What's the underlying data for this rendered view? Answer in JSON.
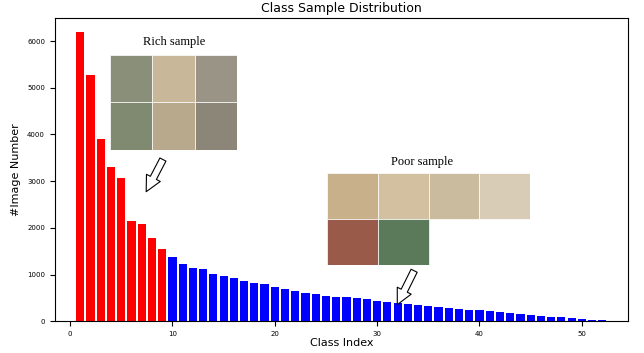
{
  "chart_data": {
    "type": "bar",
    "title": "Class Sample Distribution",
    "x_label": "Class Index",
    "y_label": "#Image Number",
    "x": [
      1,
      2,
      3,
      4,
      5,
      6,
      7,
      8,
      9,
      10,
      11,
      12,
      13,
      14,
      15,
      16,
      17,
      18,
      19,
      20,
      21,
      22,
      23,
      24,
      25,
      26,
      27,
      28,
      29,
      30,
      31,
      32,
      33,
      34,
      35,
      36,
      37,
      38,
      39,
      40,
      41,
      42,
      43,
      44,
      45,
      46,
      47,
      48,
      49,
      50,
      51,
      52
    ],
    "values": [
      6200,
      5280,
      3900,
      3300,
      3070,
      2140,
      2090,
      1790,
      1540,
      1380,
      1220,
      1130,
      1120,
      1010,
      960,
      920,
      860,
      810,
      790,
      730,
      680,
      650,
      610,
      580,
      550,
      520,
      510,
      490,
      470,
      440,
      420,
      400,
      370,
      340,
      320,
      300,
      290,
      270,
      250,
      240,
      220,
      200,
      180,
      160,
      140,
      120,
      100,
      80,
      60,
      50,
      30,
      20
    ],
    "colors": [
      "#ff0000",
      "#ff0000",
      "#ff0000",
      "#ff0000",
      "#ff0000",
      "#ff0000",
      "#ff0000",
      "#ff0000",
      "#ff0000",
      "#0000ff",
      "#0000ff",
      "#0000ff",
      "#0000ff",
      "#0000ff",
      "#0000ff",
      "#0000ff",
      "#0000ff",
      "#0000ff",
      "#0000ff",
      "#0000ff",
      "#0000ff",
      "#0000ff",
      "#0000ff",
      "#0000ff",
      "#0000ff",
      "#0000ff",
      "#0000ff",
      "#0000ff",
      "#0000ff",
      "#0000ff",
      "#0000ff",
      "#0000ff",
      "#0000ff",
      "#0000ff",
      "#0000ff",
      "#0000ff",
      "#0000ff",
      "#0000ff",
      "#0000ff",
      "#0000ff",
      "#0000ff",
      "#0000ff",
      "#0000ff",
      "#0000ff",
      "#0000ff",
      "#0000ff",
      "#0000ff",
      "#0000ff",
      "#0000ff",
      "#0000ff",
      "#0000ff",
      "#0000ff"
    ],
    "xlim": [
      -1.5,
      54.5
    ],
    "xticks": [
      0,
      10,
      20,
      30,
      40,
      50
    ],
    "ylim": [
      0,
      6500
    ],
    "yticks": [
      0,
      1000,
      2000,
      3000,
      4000,
      5000,
      6000
    ],
    "grid": false,
    "annotations": [
      {
        "text": "Rich sample"
      },
      {
        "text": "Poor sample"
      }
    ]
  }
}
